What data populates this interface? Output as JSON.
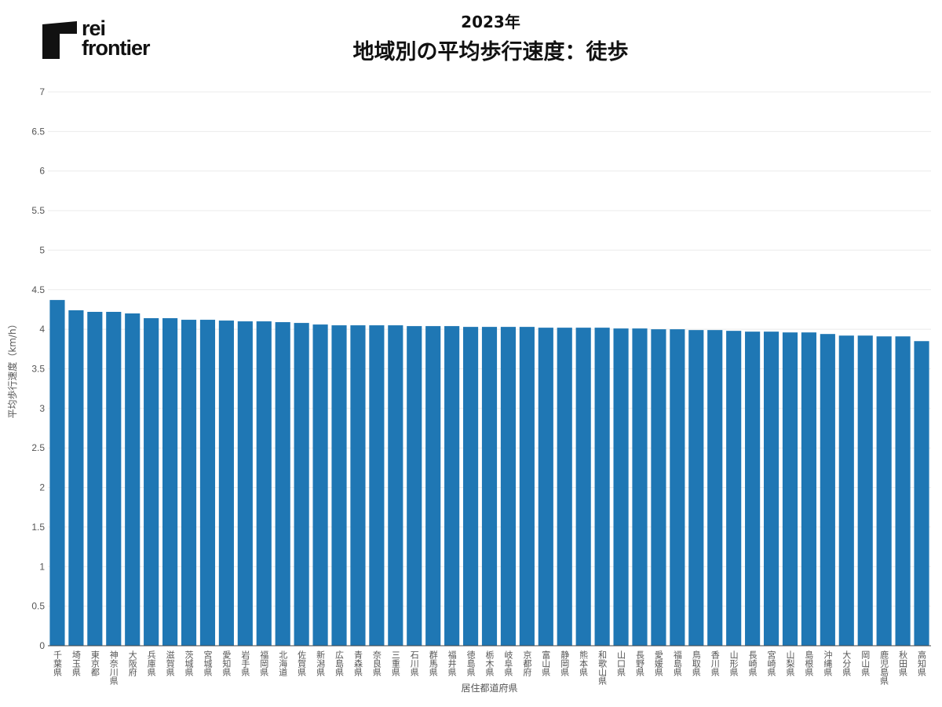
{
  "brand": {
    "logo_text_line1": "rei",
    "logo_text_line2": "frontier"
  },
  "chart_data": {
    "type": "bar",
    "title": "地域別の平均歩行速度：徒歩",
    "subtitle": "2023年",
    "xlabel": "居住都道府県",
    "ylabel": "平均歩行速度（km/h）",
    "ylim": [
      0,
      7
    ],
    "yticks": [
      0,
      0.5,
      1,
      1.5,
      2,
      2.5,
      3,
      3.5,
      4,
      4.5,
      5,
      5.5,
      6,
      6.5,
      7
    ],
    "grid": true,
    "bar_color": "#1f77b4",
    "categories": [
      "千葉県",
      "埼玉県",
      "東京都",
      "神奈川県",
      "大阪府",
      "兵庫県",
      "滋賀県",
      "茨城県",
      "宮城県",
      "愛知県",
      "岩手県",
      "福岡県",
      "北海道",
      "佐賀県",
      "新潟県",
      "広島県",
      "青森県",
      "奈良県",
      "三重県",
      "石川県",
      "群馬県",
      "福井県",
      "徳島県",
      "栃木県",
      "岐阜県",
      "京都府",
      "富山県",
      "静岡県",
      "熊本県",
      "和歌山県",
      "山口県",
      "長野県",
      "愛媛県",
      "福島県",
      "鳥取県",
      "香川県",
      "山形県",
      "長崎県",
      "宮崎県",
      "山梨県",
      "島根県",
      "沖縄県",
      "大分県",
      "岡山県",
      "鹿児島県",
      "秋田県",
      "高知県"
    ],
    "values": [
      4.37,
      4.24,
      4.22,
      4.22,
      4.2,
      4.14,
      4.14,
      4.12,
      4.12,
      4.11,
      4.1,
      4.1,
      4.09,
      4.08,
      4.06,
      4.05,
      4.05,
      4.05,
      4.05,
      4.04,
      4.04,
      4.04,
      4.03,
      4.03,
      4.03,
      4.03,
      4.02,
      4.02,
      4.02,
      4.02,
      4.01,
      4.01,
      4.0,
      4.0,
      3.99,
      3.99,
      3.98,
      3.97,
      3.97,
      3.96,
      3.96,
      3.94,
      3.92,
      3.92,
      3.91,
      3.91,
      3.85
    ]
  }
}
